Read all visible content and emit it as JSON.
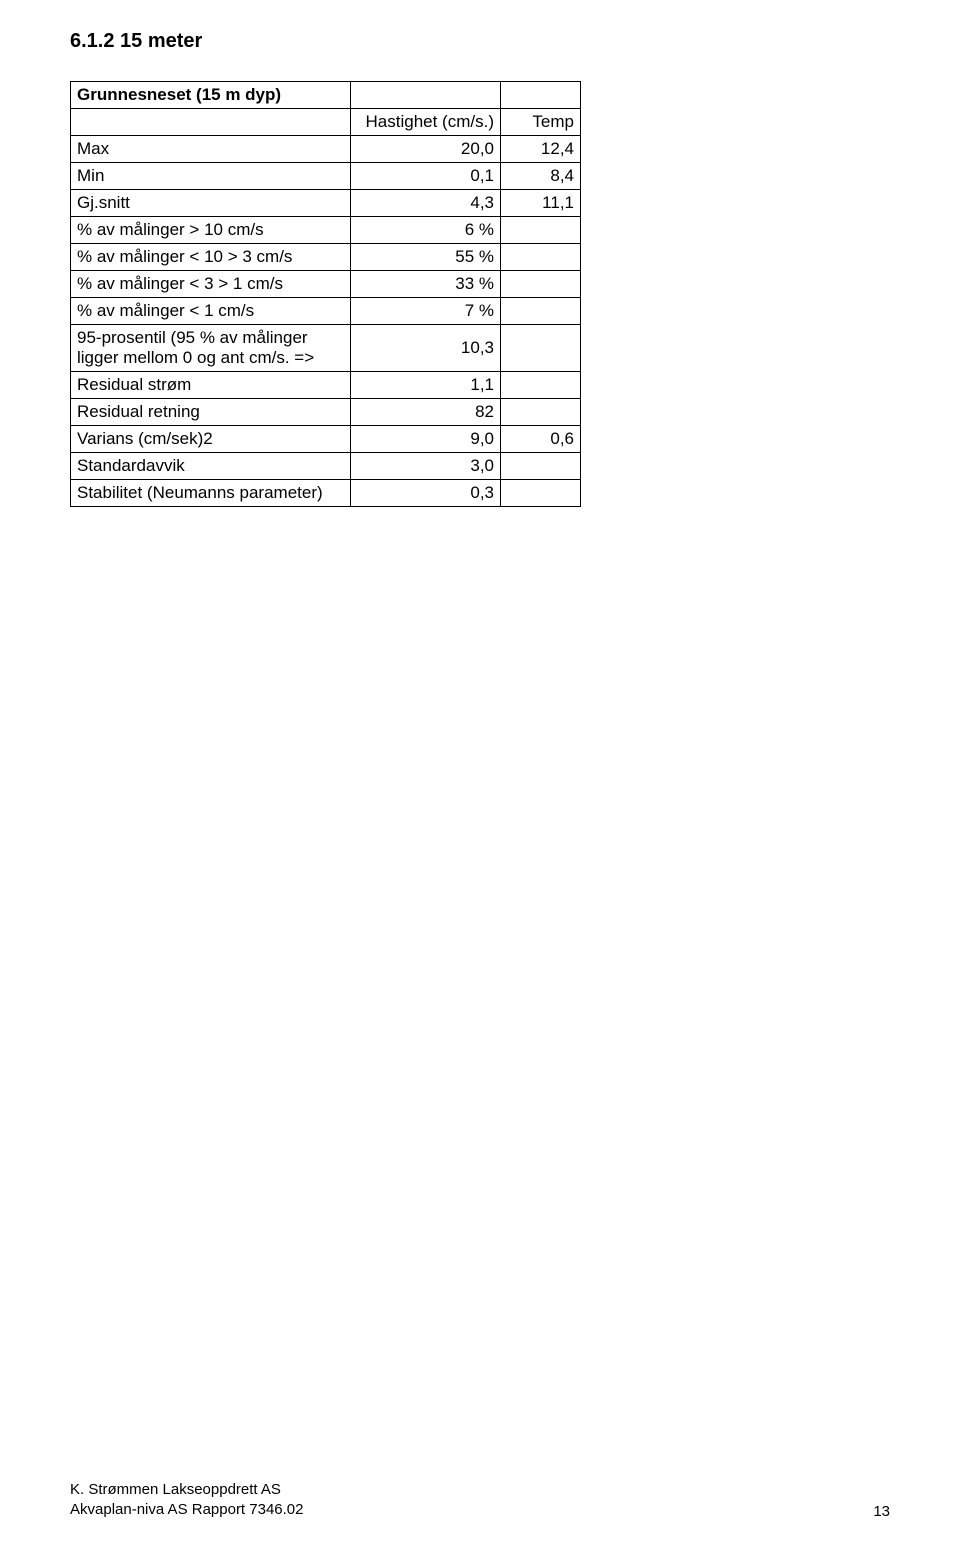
{
  "heading": "6.1.2 15 meter",
  "table": {
    "rows": [
      {
        "label": "Grunnesneset (15 m dyp)",
        "v1": "",
        "v2": "",
        "bold": true
      },
      {
        "label": "",
        "v1": "Hastighet (cm/s.)",
        "v2": "Temp"
      },
      {
        "label": "Max",
        "v1": "20,0",
        "v2": "12,4"
      },
      {
        "label": "Min",
        "v1": "0,1",
        "v2": "8,4"
      },
      {
        "label": "Gj.snitt",
        "v1": "4,3",
        "v2": "11,1"
      },
      {
        "label": "% av målinger > 10 cm/s",
        "v1": "6 %",
        "v2": ""
      },
      {
        "label": "% av målinger < 10 > 3 cm/s",
        "v1": "55 %",
        "v2": ""
      },
      {
        "label": "% av målinger < 3 > 1 cm/s",
        "v1": "33 %",
        "v2": ""
      },
      {
        "label": "% av målinger < 1 cm/s",
        "v1": "7 %",
        "v2": ""
      },
      {
        "label": "95-prosentil (95 % av målinger ligger mellom 0 og ant cm/s. =>",
        "v1": "10,3",
        "v2": ""
      },
      {
        "label": "Residual strøm",
        "v1": "1,1",
        "v2": ""
      },
      {
        "label": "Residual retning",
        "v1": "82",
        "v2": ""
      },
      {
        "label": "Varians (cm/sek)2",
        "v1": "9,0",
        "v2": "0,6"
      },
      {
        "label": "Standardavvik",
        "v1": "3,0",
        "v2": ""
      },
      {
        "label": "Stabilitet (Neumanns parameter)",
        "v1": "0,3",
        "v2": ""
      }
    ]
  },
  "footer": {
    "line1": "K. Strømmen Lakseoppdrett AS",
    "line2": "Akvaplan-niva AS Rapport 7346.02",
    "page": "13"
  }
}
